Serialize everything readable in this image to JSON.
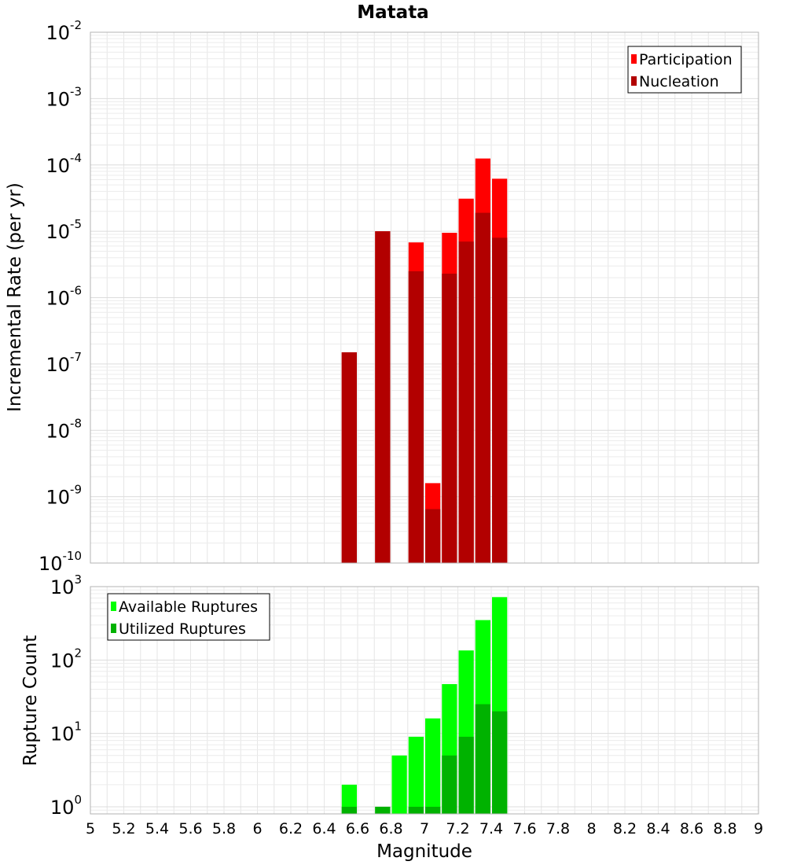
{
  "chart_data": [
    {
      "type": "bar",
      "title": "Matata",
      "ylabel": "Incremental Rate (per yr)",
      "yscale": "log",
      "ylim": [
        1e-10,
        0.01
      ],
      "xlim": [
        5,
        9
      ],
      "grid": true,
      "legend_position": "top-right",
      "bar_width": 0.1,
      "series": [
        {
          "name": "Participation",
          "color": "#ff0000",
          "x": [
            6.55,
            6.75,
            6.95,
            7.05,
            7.15,
            7.25,
            7.35,
            7.45
          ],
          "values": [
            1.5e-07,
            1e-05,
            6.8e-06,
            1.6e-09,
            9.5e-06,
            3.1e-05,
            0.000125,
            6.2e-05
          ]
        },
        {
          "name": "Nucleation",
          "color": "#b20000",
          "x": [
            6.55,
            6.75,
            6.95,
            7.05,
            7.15,
            7.25,
            7.35,
            7.45
          ],
          "values": [
            1.5e-07,
            1e-05,
            2.5e-06,
            6.5e-10,
            2.3e-06,
            7e-06,
            1.9e-05,
            8e-06
          ]
        }
      ]
    },
    {
      "type": "bar",
      "xlabel": "Magnitude",
      "ylabel": "Rupture Count",
      "yscale": "log",
      "ylim": [
        0.8,
        1000
      ],
      "xlim": [
        5,
        9
      ],
      "grid": true,
      "legend_position": "top-left",
      "bar_width": 0.1,
      "x_ticks": [
        "5",
        "5.2",
        "5.4",
        "5.6",
        "5.8",
        "6",
        "6.2",
        "6.4",
        "6.6",
        "6.8",
        "7",
        "7.2",
        "7.4",
        "7.6",
        "7.8",
        "8",
        "8.2",
        "8.4",
        "8.6",
        "8.8",
        "9"
      ],
      "series": [
        {
          "name": "Available Ruptures",
          "color": "#00ff00",
          "x": [
            6.55,
            6.75,
            6.85,
            6.95,
            7.05,
            7.15,
            7.25,
            7.35,
            7.45
          ],
          "values": [
            2,
            1,
            5,
            9,
            16,
            47,
            135,
            350,
            720
          ]
        },
        {
          "name": "Utilized Ruptures",
          "color": "#00b200",
          "x": [
            6.55,
            6.75,
            6.85,
            6.95,
            7.05,
            7.15,
            7.25,
            7.35,
            7.45
          ],
          "values": [
            1,
            1,
            0,
            1,
            1,
            5,
            9,
            25,
            20
          ]
        }
      ]
    }
  ]
}
